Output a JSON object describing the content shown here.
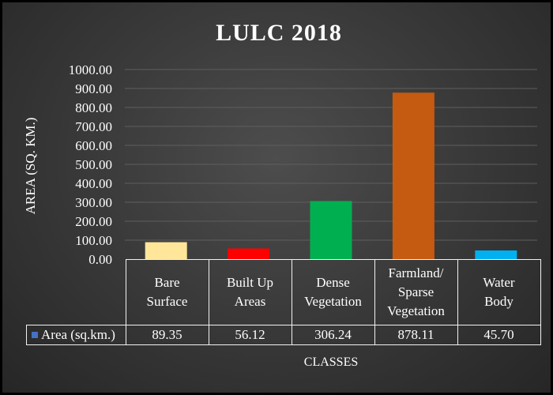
{
  "chart_data": {
    "type": "bar",
    "title": "LULC 2018",
    "xlabel": "CLASSES",
    "ylabel": "AREA  (SQ. KM.)",
    "categories": [
      "Bare Surface",
      "Built Up Areas",
      "Dense Vegetation",
      "Farmland/ Sparse Vegetation",
      "Water Body"
    ],
    "category_lines": [
      [
        "Bare",
        "Surface"
      ],
      [
        "Built Up",
        "Areas"
      ],
      [
        "Dense",
        "Vegetation"
      ],
      [
        "Farmland/",
        "Sparse",
        "Vegetation"
      ],
      [
        "Water",
        "Body"
      ]
    ],
    "series": [
      {
        "name": "Area (sq.km.)",
        "values": [
          89.35,
          56.12,
          306.24,
          878.11,
          45.7
        ]
      }
    ],
    "value_labels": [
      "89.35",
      "56.12",
      "306.24",
      "878.11",
      "45.70"
    ],
    "bar_colors": [
      "#ffe699",
      "#ff0000",
      "#00b050",
      "#c55a11",
      "#00b0f0"
    ],
    "legend_color": "#4472c4",
    "ylim": [
      0,
      1000
    ],
    "yticks": [
      "0.00",
      "100.00",
      "200.00",
      "300.00",
      "400.00",
      "500.00",
      "600.00",
      "700.00",
      "800.00",
      "900.00",
      "1000.00"
    ],
    "grid": true,
    "legend_placement": "data-table"
  }
}
